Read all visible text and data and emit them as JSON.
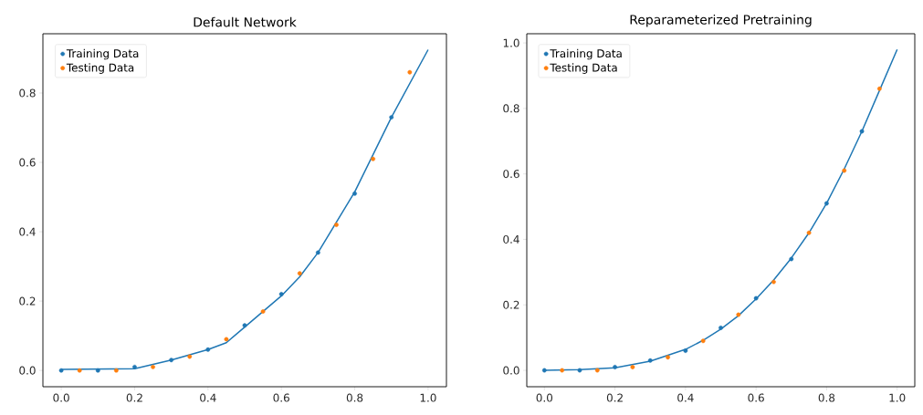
{
  "chart_data": [
    {
      "type": "scatter",
      "title": "Default Network",
      "xlim": [
        -0.05,
        1.05
      ],
      "ylim": [
        -0.047,
        0.971
      ],
      "legend": "top left",
      "marker": "circle",
      "grid": false,
      "xticks": [
        {
          "value": 0,
          "label": "0.0"
        },
        {
          "value": 0.2,
          "label": "0.2"
        },
        {
          "value": 0.4,
          "label": "0.4"
        },
        {
          "value": 0.6,
          "label": "0.6"
        },
        {
          "value": 0.8,
          "label": "0.8"
        },
        {
          "value": 1,
          "label": "1.0"
        }
      ],
      "yticks": [
        {
          "value": 0,
          "label": "0.0"
        },
        {
          "value": 0.2,
          "label": "0.2"
        },
        {
          "value": 0.4,
          "label": "0.4"
        },
        {
          "value": 0.6,
          "label": "0.6"
        },
        {
          "value": 0.8,
          "label": "0.8"
        }
      ],
      "series": [
        {
          "type": "line",
          "marker": "none",
          "color": "#1f77b4",
          "x": [
            0,
            0.2,
            0.3,
            0.4,
            0.45,
            0.5,
            0.6,
            0.65,
            0.7,
            0.8,
            0.9,
            1.0
          ],
          "values": [
            0.003,
            0.005,
            0.03,
            0.06,
            0.08,
            0.125,
            0.215,
            0.27,
            0.34,
            0.515,
            0.73,
            0.925
          ]
        },
        {
          "name": "Training Data",
          "color": "#1f77b4",
          "x": [
            0,
            0.1,
            0.2,
            0.3,
            0.4,
            0.5,
            0.6,
            0.7,
            0.8,
            0.9
          ],
          "values": [
            0,
            0,
            0.01,
            0.03,
            0.06,
            0.13,
            0.22,
            0.34,
            0.51,
            0.73
          ]
        },
        {
          "name": "Testing Data",
          "color": "#ff7f0e",
          "x": [
            0.05,
            0.15,
            0.25,
            0.35,
            0.45,
            0.55,
            0.65,
            0.75,
            0.85,
            0.95
          ],
          "values": [
            0,
            0,
            0.01,
            0.04,
            0.09,
            0.17,
            0.28,
            0.42,
            0.61,
            0.86
          ]
        }
      ]
    },
    {
      "type": "scatter",
      "title": "Reparameterized Pretraining",
      "xlim": [
        -0.05,
        1.05
      ],
      "ylim": [
        -0.05,
        1.028
      ],
      "legend": "top left",
      "marker": "circle",
      "grid": false,
      "xticks": [
        {
          "value": 0,
          "label": "0.0"
        },
        {
          "value": 0.2,
          "label": "0.2"
        },
        {
          "value": 0.4,
          "label": "0.4"
        },
        {
          "value": 0.6,
          "label": "0.6"
        },
        {
          "value": 0.8,
          "label": "0.8"
        },
        {
          "value": 1,
          "label": "1.0"
        }
      ],
      "yticks": [
        {
          "value": 0,
          "label": "0.0"
        },
        {
          "value": 0.2,
          "label": "0.2"
        },
        {
          "value": 0.4,
          "label": "0.4"
        },
        {
          "value": 0.6,
          "label": "0.6"
        },
        {
          "value": 0.8,
          "label": "0.8"
        },
        {
          "value": 1,
          "label": "1.0"
        }
      ],
      "series": [
        {
          "type": "line",
          "marker": "none",
          "color": "#1f77b4",
          "x": [
            0,
            0.1,
            0.2,
            0.3,
            0.4,
            0.45,
            0.5,
            0.55,
            0.6,
            0.65,
            0.7,
            0.75,
            0.8,
            0.85,
            0.9,
            0.95,
            1.0
          ],
          "values": [
            0,
            0.002,
            0.008,
            0.028,
            0.064,
            0.092,
            0.126,
            0.167,
            0.218,
            0.276,
            0.343,
            0.42,
            0.51,
            0.615,
            0.73,
            0.855,
            0.98
          ]
        },
        {
          "name": "Training Data",
          "color": "#1f77b4",
          "x": [
            0,
            0.1,
            0.2,
            0.3,
            0.4,
            0.5,
            0.6,
            0.7,
            0.8,
            0.9
          ],
          "values": [
            0,
            0,
            0.01,
            0.03,
            0.06,
            0.13,
            0.22,
            0.34,
            0.51,
            0.73
          ]
        },
        {
          "name": "Testing Data",
          "color": "#ff7f0e",
          "x": [
            0.05,
            0.15,
            0.25,
            0.35,
            0.45,
            0.55,
            0.65,
            0.75,
            0.85,
            0.95
          ],
          "values": [
            0,
            0,
            0.01,
            0.04,
            0.09,
            0.17,
            0.27,
            0.42,
            0.61,
            0.86
          ]
        }
      ]
    }
  ]
}
